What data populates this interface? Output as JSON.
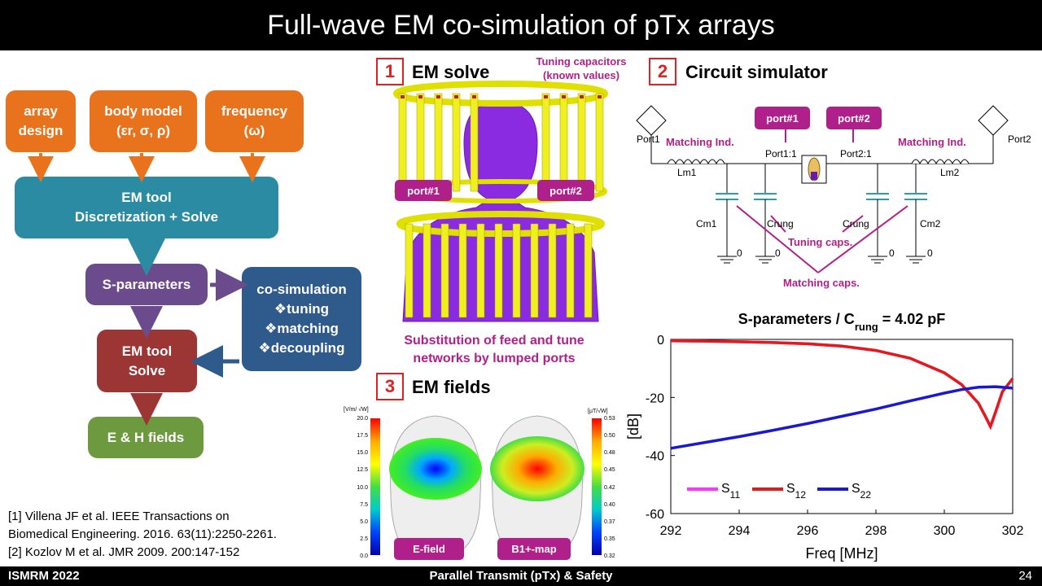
{
  "title": "Full-wave EM co-simulation of pTx arrays",
  "footer": {
    "left": "ISMRM  2022",
    "center": "Parallel Transmit (pTx) & Safety",
    "page": "24"
  },
  "flow": {
    "array_design": "array\ndesign",
    "body_model": "body model\n(εr, σ, ρ)",
    "frequency": "frequency\n(ω)",
    "em_tool": "EM tool\nDiscretization + Solve",
    "s_parameters": "S-parameters",
    "cosim_title": "co-simulation",
    "cosim_items": [
      "❖tuning",
      "❖matching",
      "❖decoupling"
    ],
    "em_solve_box": "EM tool\nSolve",
    "fields": "E & H fields"
  },
  "references": [
    "[1] Villena JF et al.  IEEE Transactions on",
    "Biomedical Engineering. 2016. 63(11):2250-2261.",
    "[2] Kozlov M et al. JMR 2009. 200:147-152"
  ],
  "sec1": {
    "num": "1",
    "title": "EM solve",
    "tuning_note": "Tuning capacitors\n(known values)",
    "port1": "port#1",
    "port2": "port#2",
    "caption": "Substitution of feed and tune\nnetworks by lumped ports"
  },
  "sec2": {
    "num": "2",
    "title": "Circuit simulator",
    "port1_tag": "port#1",
    "port2_tag": "port#2",
    "labels": {
      "port1": "Port1",
      "port2": "Port2",
      "match_left": "Matching Ind.",
      "match_right": "Matching Ind.",
      "lm1": "Lm1",
      "lm2": "Lm2",
      "p11": "Port1:1",
      "p21": "Port2:1",
      "cm1": "Cm1",
      "cm2": "Cm2",
      "crung1": "Crung",
      "crung2": "Crung",
      "tuning_caps": "Tuning caps.",
      "matching_caps": "Matching caps.",
      "zero": "0"
    }
  },
  "sec3": {
    "num": "3",
    "title": "EM fields",
    "efield_tag": "E-field",
    "b1_tag": "B1+-map",
    "cb1_unit": "[V/m/ √W]",
    "cb1_ticks": [
      "20.0",
      "17.5",
      "15.0",
      "12.5",
      "10.0",
      "7.5",
      "5.0",
      "2.5",
      "0.0"
    ],
    "cb2_unit": "[µT/√W]",
    "cb2_ticks": [
      "0.53",
      "0.50",
      "0.48",
      "0.45",
      "0.42",
      "0.40",
      "0.37",
      "0.35",
      "0.32"
    ]
  },
  "chart_data": {
    "type": "line",
    "title": "S-parameters / C_rung = 4.02 pF",
    "xlabel": "Freq [MHz]",
    "ylabel": "[dB]",
    "xlim": [
      292,
      302
    ],
    "ylim": [
      -60,
      0
    ],
    "xticks": [
      "292",
      "294",
      "296",
      "298",
      "300",
      "302"
    ],
    "yticks": [
      "0",
      "-20",
      "-40",
      "-60"
    ],
    "legend_placement": "bottom-left",
    "series": [
      {
        "name": "S11",
        "color": "#ff33ff",
        "x": [
          292,
          293,
          294,
          295,
          296,
          297,
          298,
          299,
          300,
          300.5,
          301,
          301.2,
          301.35,
          301.5,
          301.7,
          302
        ],
        "y": [
          -0.5,
          -0.6,
          -0.8,
          -1.1,
          -1.5,
          -2.3,
          -3.8,
          -6.5,
          -11.5,
          -15.5,
          -22,
          -26.5,
          -30,
          -25,
          -18,
          -13.5
        ]
      },
      {
        "name": "S12",
        "color": "#e31a1c",
        "x": [
          292,
          293,
          294,
          295,
          296,
          297,
          298,
          299,
          300,
          300.5,
          301,
          301.2,
          301.35,
          301.5,
          301.7,
          302
        ],
        "y": [
          -0.5,
          -0.6,
          -0.8,
          -1.1,
          -1.5,
          -2.3,
          -3.8,
          -6.5,
          -11.5,
          -15.5,
          -22,
          -26.5,
          -30,
          -25,
          -18,
          -13.5
        ]
      },
      {
        "name": "S22",
        "color": "#1a1acc",
        "x": [
          292,
          293,
          294,
          295,
          296,
          297,
          298,
          299,
          300,
          300.5,
          301,
          301.5,
          302
        ],
        "y": [
          -37.5,
          -35.5,
          -33.5,
          -31.3,
          -29,
          -26.5,
          -24,
          -21.2,
          -18.5,
          -17.3,
          -16.5,
          -16.3,
          -16.8
        ]
      }
    ]
  }
}
